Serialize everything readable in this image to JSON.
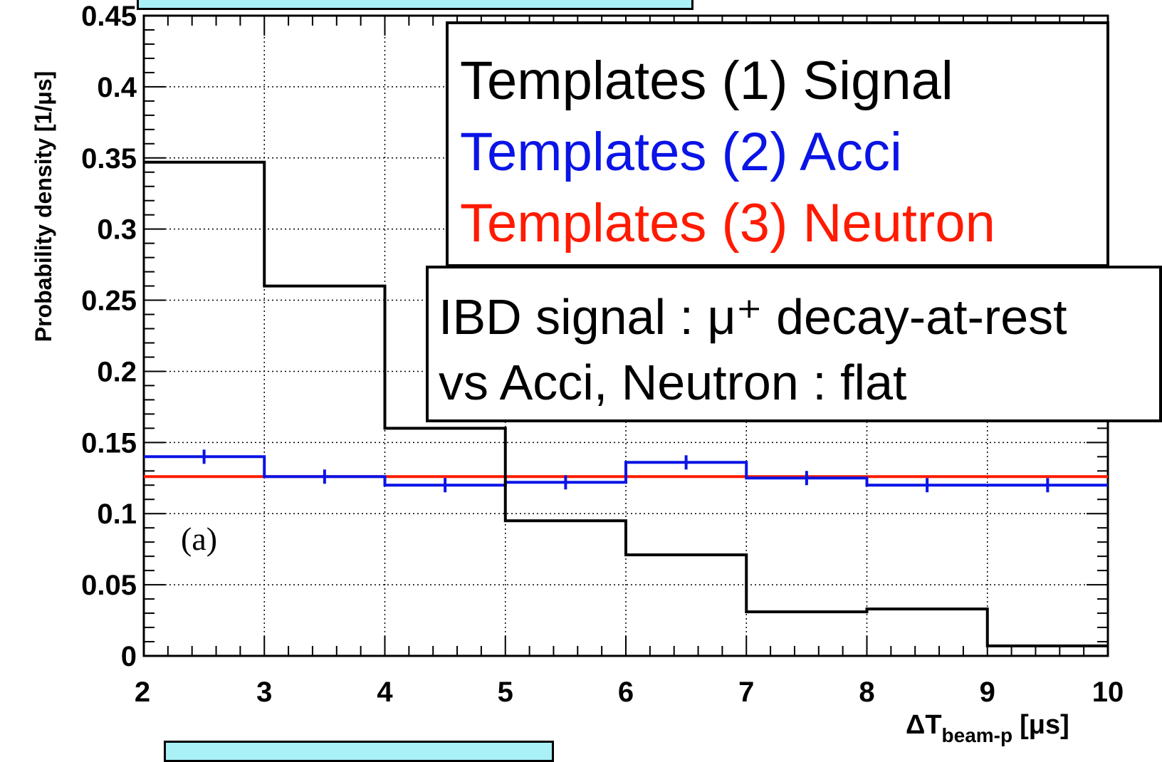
{
  "chart_data": {
    "type": "line",
    "xlabel": "ΔT",
    "xlabel_subscript": "beam-p",
    "xlabel_unit": "[μs]",
    "ylabel": "Probability density [1/μs]",
    "xlim": [
      2,
      10
    ],
    "ylim": [
      0,
      0.45
    ],
    "x_ticks": [
      "2",
      "3",
      "4",
      "5",
      "6",
      "7",
      "8",
      "9",
      "10"
    ],
    "y_ticks": [
      "0",
      "0.05",
      "0.1",
      "0.15",
      "0.2",
      "0.25",
      "0.3",
      "0.35",
      "0.4",
      "0.45"
    ],
    "grid": true,
    "bin_edges": [
      2,
      3,
      4,
      5,
      6,
      7,
      8,
      9,
      10
    ],
    "series": [
      {
        "name": "Templates (1) Signal",
        "color": "#000000",
        "style": "histogram",
        "values": [
          0.347,
          0.26,
          0.16,
          0.095,
          0.071,
          0.031,
          0.033,
          0.007
        ]
      },
      {
        "name": "Templates (2) Acci",
        "color": "#0a14e6",
        "style": "histogram-errorbars",
        "values": [
          0.14,
          0.126,
          0.12,
          0.122,
          0.136,
          0.125,
          0.12,
          0.12
        ],
        "errors": [
          0.005,
          0.005,
          0.005,
          0.005,
          0.005,
          0.005,
          0.005,
          0.005
        ]
      },
      {
        "name": "Templates (3) Neutron",
        "color": "#ff1a00",
        "style": "flat",
        "values": [
          0.126,
          0.126,
          0.126,
          0.126,
          0.126,
          0.126,
          0.126,
          0.126
        ]
      }
    ],
    "legend_position": "top-right",
    "annotations": {
      "panel_label": "(a)",
      "note_line1": "IBD signal : μ⁺ decay-at-rest",
      "note_line2": "vs Acci, Neutron : flat"
    }
  }
}
